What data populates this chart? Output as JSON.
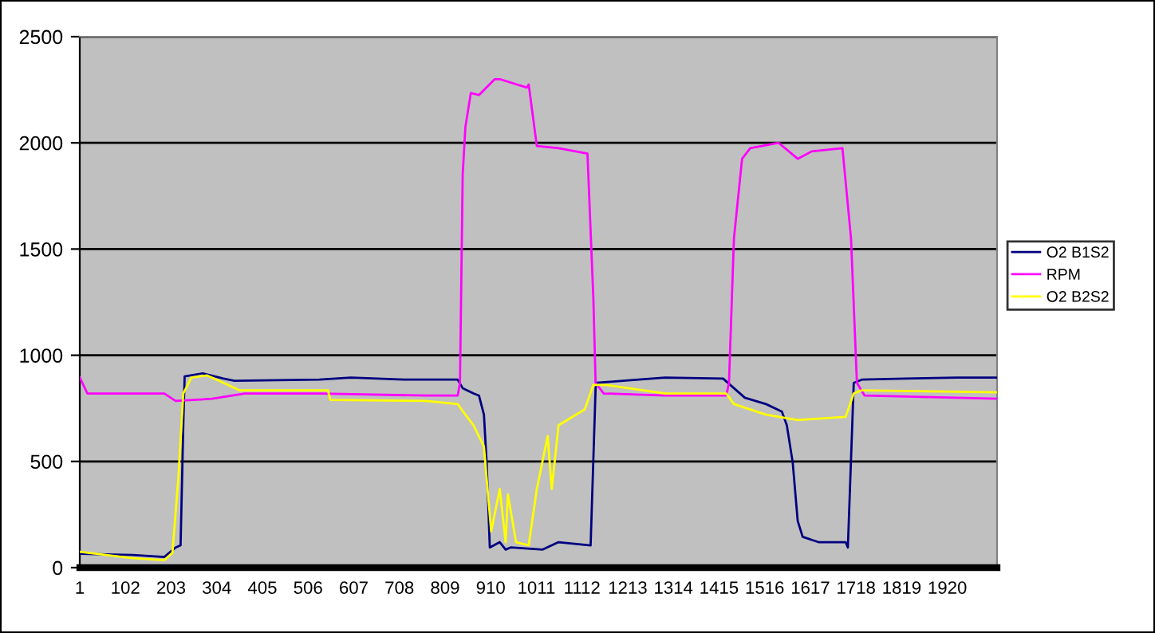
{
  "chart_data": {
    "type": "line",
    "xlim": [
      1,
      2030
    ],
    "xticks": [
      1,
      102,
      203,
      304,
      405,
      506,
      607,
      708,
      809,
      910,
      1011,
      1112,
      1213,
      1314,
      1415,
      1516,
      1617,
      1718,
      1819,
      1920
    ],
    "ylim": [
      0,
      2500
    ],
    "yticks": [
      0,
      500,
      1000,
      1500,
      2000,
      2500
    ],
    "grid": "y",
    "legend": "right",
    "marker": "none",
    "line_style": "solid",
    "series": [
      {
        "name": "O2 B1S2",
        "color": "#000080",
        "x": [
          1,
          118,
          188,
          213,
          224,
          230,
          233,
          273,
          319,
          343,
          531,
          601,
          718,
          837,
          848,
          872,
          884,
          895,
          901,
          908,
          930,
          943,
          954,
          1025,
          1060,
          1131,
          1142,
          1144,
          1237,
          1296,
          1424,
          1448,
          1472,
          1519,
          1554,
          1565,
          1578,
          1589,
          1600,
          1635,
          1695,
          1700,
          1713,
          1731,
          1826,
          1942,
          2030
        ],
        "values": [
          65,
          60,
          50,
          95,
          105,
          670,
          900,
          915,
          890,
          880,
          885,
          895,
          885,
          885,
          845,
          820,
          810,
          720,
          495,
          95,
          120,
          85,
          95,
          85,
          120,
          105,
          845,
          870,
          885,
          895,
          890,
          845,
          800,
          770,
          735,
          670,
          495,
          220,
          145,
          120,
          120,
          95,
          870,
          885,
          890,
          895,
          895
        ]
      },
      {
        "name": "RPM",
        "color": "#ff00ff",
        "x": [
          1,
          18,
          118,
          188,
          213,
          294,
          366,
          531,
          766,
          837,
          842,
          848,
          854,
          866,
          884,
          919,
          930,
          990,
          994,
          1012,
          1060,
          1124,
          1137,
          1142,
          1160,
          1296,
          1431,
          1437,
          1448,
          1466,
          1484,
          1547,
          1589,
          1620,
          1688,
          1707,
          1720,
          1737,
          2030
        ],
        "values": [
          895,
          820,
          820,
          820,
          785,
          795,
          820,
          820,
          810,
          810,
          870,
          1850,
          2075,
          2235,
          2225,
          2300,
          2300,
          2260,
          2275,
          1985,
          1975,
          1950,
          1270,
          870,
          820,
          810,
          810,
          870,
          1550,
          1925,
          1975,
          2000,
          1925,
          1960,
          1975,
          1550,
          870,
          810,
          795
        ]
      },
      {
        "name": "O2 B2S2",
        "color": "#ffff00",
        "x": [
          1,
          118,
          188,
          206,
          219,
          230,
          248,
          283,
          319,
          354,
          550,
          555,
          766,
          837,
          854,
          872,
          895,
          911,
          930,
          943,
          948,
          966,
          994,
          1012,
          1036,
          1045,
          1060,
          1118,
          1137,
          1166,
          1296,
          1431,
          1448,
          1519,
          1589,
          1695,
          1713,
          1731,
          2030
        ],
        "values": [
          75,
          45,
          35,
          70,
          420,
          820,
          895,
          905,
          870,
          835,
          835,
          790,
          785,
          770,
          720,
          670,
          570,
          170,
          370,
          120,
          345,
          120,
          105,
          370,
          620,
          370,
          670,
          745,
          860,
          860,
          820,
          820,
          770,
          720,
          695,
          710,
          820,
          835,
          825
        ]
      }
    ]
  }
}
